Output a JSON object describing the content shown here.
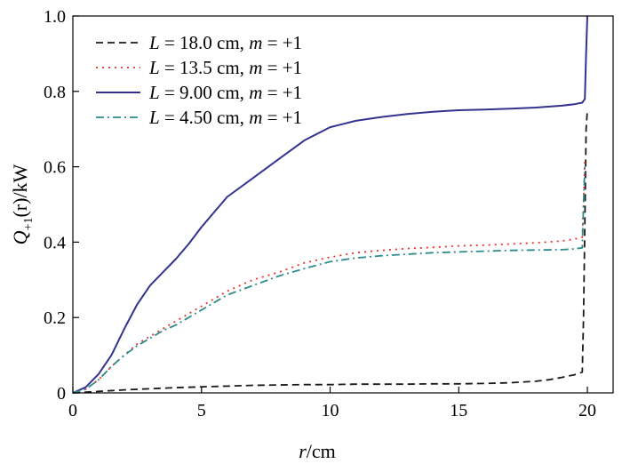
{
  "chart_data": {
    "type": "line",
    "xlabel_var": "r",
    "xlabel_unit": "/cm",
    "ylabel_var": "Q",
    "ylabel_sub": "+1",
    "ylabel_arg": "(r)",
    "ylabel_unit": "/kW",
    "xlim": [
      0,
      21
    ],
    "ylim": [
      0,
      1.0
    ],
    "xticks": [
      0,
      5,
      10,
      15,
      20
    ],
    "xtick_labels": [
      "0",
      "5",
      "10",
      "15",
      "20"
    ],
    "yticks": [
      0,
      0.2,
      0.4,
      0.6,
      0.8,
      1.0
    ],
    "ytick_labels": [
      "0",
      "0.2",
      "0.4",
      "0.6",
      "0.8",
      "1.0"
    ],
    "grid": false,
    "legend_position": "top-left",
    "series": [
      {
        "legend_var": "L",
        "legend_value": " = 18.0 cm, ",
        "legend_mvar": "m",
        "legend_mvalue": " = +1",
        "color": "#1a1a1a",
        "dash": "8,5",
        "x": [
          0,
          0.5,
          1,
          2,
          3,
          4,
          5,
          6,
          7,
          8,
          9,
          10,
          11,
          12,
          13,
          14,
          15,
          16,
          17,
          18,
          18.5,
          19,
          19.5,
          19.8,
          19.85,
          19.9,
          19.95,
          20.0
        ],
        "y": [
          0,
          0.002,
          0.004,
          0.008,
          0.011,
          0.014,
          0.016,
          0.018,
          0.02,
          0.021,
          0.022,
          0.022,
          0.023,
          0.023,
          0.023,
          0.024,
          0.024,
          0.025,
          0.027,
          0.031,
          0.035,
          0.041,
          0.048,
          0.055,
          0.2,
          0.45,
          0.7,
          0.75
        ]
      },
      {
        "legend_var": "L",
        "legend_value": " = 13.5 cm, ",
        "legend_mvar": "m",
        "legend_mvalue": " = +1",
        "color": "#e8332a",
        "dash": "2,5",
        "x": [
          0,
          0.5,
          1,
          1.5,
          2,
          2.5,
          3,
          3.5,
          4,
          5,
          6,
          7,
          8,
          9,
          10,
          11,
          12,
          13,
          14,
          15,
          16,
          17,
          18,
          19,
          19.5,
          19.8,
          19.85,
          19.9
        ],
        "y": [
          0,
          0.01,
          0.035,
          0.07,
          0.1,
          0.13,
          0.15,
          0.17,
          0.19,
          0.23,
          0.27,
          0.3,
          0.32,
          0.345,
          0.36,
          0.372,
          0.378,
          0.383,
          0.386,
          0.39,
          0.392,
          0.395,
          0.398,
          0.403,
          0.408,
          0.413,
          0.5,
          0.62
        ]
      },
      {
        "legend_var": "L",
        "legend_value": " = 9.00 cm, ",
        "legend_mvar": "m",
        "legend_mvalue": " = +1",
        "color": "#33338f",
        "dash": "",
        "x": [
          0,
          0.5,
          1,
          1.5,
          2,
          2.5,
          3,
          3.5,
          4,
          4.5,
          5,
          5.5,
          6,
          7,
          8,
          9,
          10,
          11,
          12,
          13,
          14,
          15,
          16,
          17,
          18,
          19,
          19.5,
          19.8,
          19.9,
          19.95,
          20.0
        ],
        "y": [
          0,
          0.015,
          0.05,
          0.1,
          0.17,
          0.235,
          0.285,
          0.32,
          0.355,
          0.395,
          0.44,
          0.48,
          0.52,
          0.57,
          0.62,
          0.67,
          0.705,
          0.722,
          0.732,
          0.74,
          0.746,
          0.75,
          0.752,
          0.754,
          0.757,
          0.762,
          0.766,
          0.77,
          0.78,
          0.9,
          1.0
        ]
      },
      {
        "legend_var": "L",
        "legend_value": " = 4.50 cm, ",
        "legend_mvar": "m",
        "legend_mvalue": " = +1",
        "color": "#2e8b8b",
        "dash": "9,4,2,4",
        "x": [
          0,
          0.5,
          1,
          1.5,
          2,
          2.5,
          3,
          3.5,
          4,
          5,
          6,
          7,
          8,
          9,
          10,
          11,
          12,
          13,
          14,
          15,
          16,
          17,
          18,
          19,
          19.5,
          19.8,
          19.85,
          19.9
        ],
        "y": [
          0,
          0.01,
          0.035,
          0.07,
          0.1,
          0.125,
          0.145,
          0.165,
          0.18,
          0.22,
          0.26,
          0.285,
          0.31,
          0.33,
          0.348,
          0.358,
          0.364,
          0.368,
          0.372,
          0.374,
          0.376,
          0.378,
          0.379,
          0.38,
          0.382,
          0.385,
          0.5,
          0.6
        ]
      }
    ]
  }
}
